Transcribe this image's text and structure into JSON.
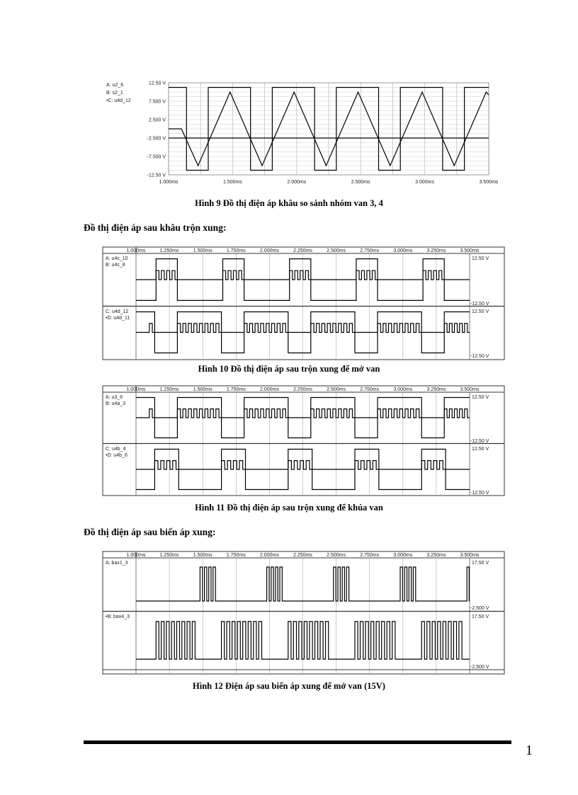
{
  "headings": {
    "mixing": "Đồ thị điện áp sau khâu trộn xung:",
    "transformer": "Đồ thị điện áp sau biến áp xung:"
  },
  "page_number": "1",
  "chart_data": [
    {
      "id": "fig9",
      "type": "line",
      "caption": "Hình 9 Đồ thị điện áp khâu so sánh nhóm van 3, 4",
      "xlim": [
        1.0,
        3.5
      ],
      "x_tick_labels": [
        "1.000ms",
        "1.500ms",
        "2.000ms",
        "2.500ms",
        "3.000ms",
        "3.500ms"
      ],
      "x_ticks": [
        1.0,
        1.5,
        2.0,
        2.5,
        3.0,
        3.5
      ],
      "ylim": [
        -12.5,
        12.5
      ],
      "y_tick_labels": [
        "12.50 V",
        "7.500 V",
        "2.500 V",
        "-2.500 V",
        "-7.500 V",
        "-12.50 V"
      ],
      "y_ticks": [
        12.5,
        7.5,
        2.5,
        -2.5,
        -7.5,
        -12.5
      ],
      "grid": true,
      "legend_placement": "left",
      "series": [
        {
          "name": "A: u2_6",
          "kind": "square",
          "high": 11.25,
          "low": -11.25,
          "high_intervals": [
            [
              1.0,
              1.14
            ],
            [
              1.31,
              1.64
            ],
            [
              1.81,
              2.14
            ],
            [
              2.31,
              2.64
            ],
            [
              2.81,
              3.14
            ],
            [
              3.31,
              3.5
            ]
          ]
        },
        {
          "name": "B: s2_1",
          "kind": "points",
          "points": [
            [
              1.0,
              0
            ],
            [
              1.1,
              0
            ],
            [
              1.23,
              -10
            ],
            [
              1.48,
              10
            ],
            [
              1.73,
              -10
            ],
            [
              1.98,
              10
            ],
            [
              2.23,
              -10
            ],
            [
              2.48,
              10
            ],
            [
              2.73,
              -10
            ],
            [
              2.98,
              10
            ],
            [
              3.23,
              -10
            ],
            [
              3.48,
              10
            ],
            [
              3.5,
              9.2
            ]
          ]
        },
        {
          "name": "•C: u4d_12",
          "kind": "points",
          "points": [
            [
              1.0,
              -2.5
            ],
            [
              3.5,
              -2.5
            ]
          ]
        }
      ]
    },
    {
      "id": "fig10",
      "type": "line",
      "caption": "Hình 10 Đồ thị điện áp sau trộn xung để mở van",
      "xlim": [
        1.0,
        3.5
      ],
      "x_tick_labels": [
        "1.000ms",
        "1.250ms",
        "1.500ms",
        "1.750ms",
        "2.000ms",
        "2.250ms",
        "2.500ms",
        "2.750ms",
        "3.000ms",
        "3.250ms",
        "3.500ms"
      ],
      "x_ticks": [
        1.0,
        1.25,
        1.5,
        1.75,
        2.0,
        2.25,
        2.5,
        2.75,
        3.0,
        3.25,
        3.5
      ],
      "grid": true,
      "panels": [
        {
          "ylim": [
            -12.5,
            12.5
          ],
          "y_top_label": "12.50 V",
          "y_bottom_label": "-12.50 V",
          "series": [
            {
              "name": "A: u4c_10",
              "kind": "square",
              "high": 11.5,
              "low": -11.5,
              "high_intervals": [
                [
                  1.15,
                  1.31
                ],
                [
                  1.65,
                  1.81
                ],
                [
                  2.15,
                  2.31
                ],
                [
                  2.65,
                  2.81
                ],
                [
                  3.15,
                  3.31
                ]
              ]
            },
            {
              "name": "B: u4c_8",
              "kind": "pulses",
              "base": 0,
              "peak": 5,
              "windows": [
                [
                  1.15,
                  1.31,
                  4
                ],
                [
                  1.65,
                  1.81,
                  4
                ],
                [
                  2.15,
                  2.31,
                  4
                ],
                [
                  2.65,
                  2.81,
                  4
                ],
                [
                  3.15,
                  3.31,
                  4
                ]
              ]
            }
          ]
        },
        {
          "ylim": [
            -12.5,
            12.5
          ],
          "y_top_label": "12.50 V",
          "y_bottom_label": "-12.50 V",
          "series": [
            {
              "name": "C: u4d_12",
              "kind": "square",
              "high": 11.5,
              "low": -11.5,
              "high_intervals": [
                [
                  1.0,
                  1.14
                ],
                [
                  1.31,
                  1.64
                ],
                [
                  1.81,
                  2.14
                ],
                [
                  2.31,
                  2.64
                ],
                [
                  2.81,
                  3.14
                ],
                [
                  3.31,
                  3.5
                ]
              ]
            },
            {
              "name": "•D: u4d_11",
              "kind": "pulses",
              "base": 0,
              "peak": 5,
              "windows": [
                [
                  1.1,
                  1.14,
                  1
                ],
                [
                  1.31,
                  1.64,
                  8
                ],
                [
                  1.81,
                  2.14,
                  8
                ],
                [
                  2.31,
                  2.64,
                  8
                ],
                [
                  2.81,
                  3.14,
                  8
                ],
                [
                  3.31,
                  3.5,
                  5
                ]
              ]
            }
          ]
        }
      ]
    },
    {
      "id": "fig11",
      "type": "line",
      "caption": "Hình 11 Đồ thị điện áp sau trộn xung để khúa van",
      "xlim": [
        1.0,
        3.5
      ],
      "x_tick_labels": [
        "1.000ms",
        "1.250ms",
        "1.500ms",
        "1.750ms",
        "2.000ms",
        "2.250ms",
        "2.500ms",
        "2.750ms",
        "3.000ms",
        "3.250ms",
        "3.500ms"
      ],
      "x_ticks": [
        1.0,
        1.25,
        1.5,
        1.75,
        2.0,
        2.25,
        2.5,
        2.75,
        3.0,
        3.25,
        3.5
      ],
      "grid": true,
      "panels": [
        {
          "ylim": [
            -12.5,
            12.5
          ],
          "y_top_label": "12.50 V",
          "y_bottom_label": "-12.50 V",
          "series": [
            {
              "name": "A: u3_6",
              "kind": "square",
              "high": 11.5,
              "low": -11.5,
              "high_intervals": [
                [
                  1.0,
                  1.14
                ],
                [
                  1.31,
                  1.64
                ],
                [
                  1.81,
                  2.14
                ],
                [
                  2.31,
                  2.64
                ],
                [
                  2.81,
                  3.14
                ],
                [
                  3.31,
                  3.5
                ]
              ]
            },
            {
              "name": "B: u4a_3",
              "kind": "pulses",
              "base": 0,
              "peak": 5,
              "windows": [
                [
                  1.1,
                  1.14,
                  1
                ],
                [
                  1.31,
                  1.64,
                  8
                ],
                [
                  1.81,
                  2.14,
                  8
                ],
                [
                  2.31,
                  2.64,
                  8
                ],
                [
                  2.81,
                  3.14,
                  8
                ],
                [
                  3.31,
                  3.5,
                  5
                ]
              ]
            }
          ]
        },
        {
          "ylim": [
            -12.5,
            12.5
          ],
          "y_top_label": "12.50 V",
          "y_bottom_label": "-12.50 V",
          "series": [
            {
              "name": "C: u4b_4",
              "kind": "square",
              "high": 11.5,
              "low": -11.5,
              "high_intervals": [
                [
                  1.14,
                  1.32
                ],
                [
                  1.64,
                  1.82
                ],
                [
                  2.14,
                  2.32
                ],
                [
                  2.64,
                  2.82
                ],
                [
                  3.14,
                  3.32
                ]
              ]
            },
            {
              "name": "•D: u4b_6",
              "kind": "pulses",
              "base": 0,
              "peak": 5,
              "windows": [
                [
                  1.14,
                  1.32,
                  4
                ],
                [
                  1.64,
                  1.82,
                  4
                ],
                [
                  2.14,
                  2.32,
                  4
                ],
                [
                  2.64,
                  2.82,
                  4
                ],
                [
                  3.14,
                  3.32,
                  4
                ]
              ]
            }
          ]
        }
      ]
    },
    {
      "id": "fig12",
      "type": "line",
      "caption": "Hình 12 Điện áp sau biến áp xung để mở van (15V)",
      "xlim": [
        1.0,
        3.5
      ],
      "x_tick_labels": [
        "1.000ms",
        "1.250ms",
        "1.500ms",
        "1.750ms",
        "2.000ms",
        "2.250ms",
        "2.500ms",
        "2.750ms",
        "3.000ms",
        "3.250ms",
        "3.500ms"
      ],
      "x_ticks": [
        1.0,
        1.25,
        1.5,
        1.75,
        2.0,
        2.25,
        2.5,
        2.75,
        3.0,
        3.25,
        3.5
      ],
      "grid": true,
      "panels": [
        {
          "ylim": [
            -2.5,
            17.5
          ],
          "y_top_label": "17.50 V",
          "y_bottom_label": "-2.500 V",
          "series": [
            {
              "name": "A: bax1_3",
              "kind": "pulses",
              "base": 0,
              "peak": 15,
              "windows": [
                [
                  1.48,
                  1.61,
                  4
                ],
                [
                  1.98,
                  2.11,
                  4
                ],
                [
                  2.48,
                  2.61,
                  4
                ],
                [
                  2.98,
                  3.11,
                  4
                ],
                [
                  3.48,
                  3.51,
                  1
                ]
              ]
            }
          ]
        },
        {
          "ylim": [
            -2.5,
            17.5
          ],
          "y_top_label": "17.50 V",
          "y_bottom_label": "-2.500 V",
          "series": [
            {
              "name": "•B: bax4_3",
              "kind": "pulses",
              "base": 0,
              "peak": 15,
              "windows": [
                [
                  1.15,
                  1.46,
                  8
                ],
                [
                  1.64,
                  1.96,
                  8
                ],
                [
                  2.14,
                  2.46,
                  8
                ],
                [
                  2.64,
                  2.96,
                  8
                ],
                [
                  3.14,
                  3.46,
                  8
                ]
              ]
            }
          ]
        }
      ]
    }
  ]
}
